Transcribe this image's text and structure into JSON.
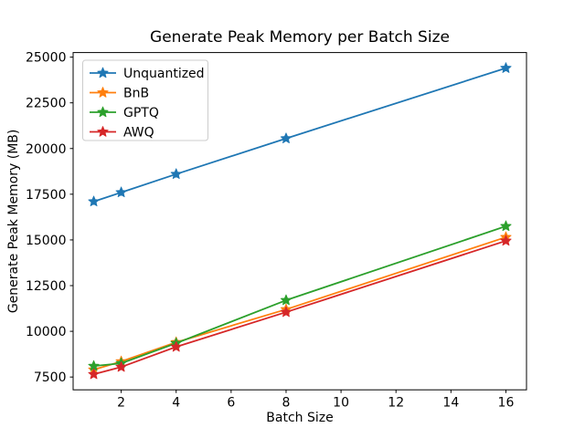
{
  "chart_data": {
    "type": "line",
    "title": "Generate Peak Memory per Batch Size",
    "xlabel": "Batch Size",
    "ylabel": "Generate Peak Memory (MB)",
    "marker": "star",
    "grid": false,
    "legend_position": "upper-left",
    "x": [
      1,
      2,
      4,
      8,
      16
    ],
    "series": [
      {
        "name": "Unquantized",
        "color": "#1f77b4",
        "values": [
          17100,
          17600,
          18600,
          20550,
          24400
        ]
      },
      {
        "name": "BnB",
        "color": "#ff7f0e",
        "values": [
          7900,
          8350,
          9400,
          11200,
          15150
        ]
      },
      {
        "name": "GPTQ",
        "color": "#2ca02c",
        "values": [
          8100,
          8250,
          9350,
          11700,
          15750
        ]
      },
      {
        "name": "AWQ",
        "color": "#d62728",
        "values": [
          7650,
          8050,
          9150,
          11050,
          14950
        ]
      }
    ],
    "xlim": [
      0.25,
      16.75
    ],
    "ylim": [
      6800,
      25250
    ],
    "xticks": [
      2,
      4,
      6,
      8,
      10,
      12,
      14,
      16
    ],
    "yticks": [
      7500,
      10000,
      12500,
      15000,
      17500,
      20000,
      22500,
      25000
    ],
    "axes_color": "#000000",
    "legend_border_color": "#cccccc",
    "legend_background": "#ffffff"
  }
}
